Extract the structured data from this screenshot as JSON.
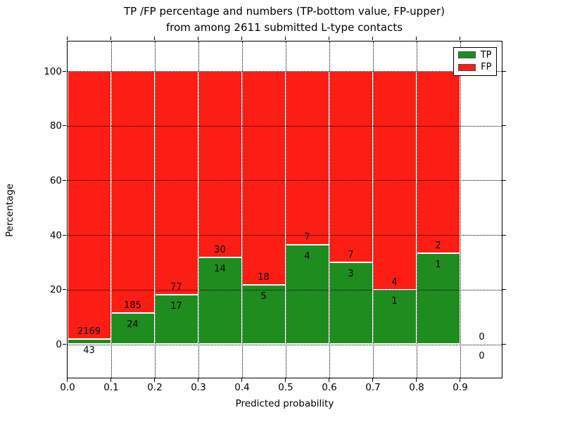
{
  "chart_data": {
    "type": "bar",
    "stacked": true,
    "normalized_to_percent": true,
    "title_line1": "TP /FP percentage and numbers (TP-bottom value, FP-upper)",
    "title_line2": "from among 2611 submitted L-type contacts",
    "total_submitted": 2611,
    "xlabel": "Predicted probability",
    "ylabel": "Percentage",
    "x_tick_labels": [
      "0.0",
      "0.1",
      "0.2",
      "0.3",
      "0.4",
      "0.5",
      "0.6",
      "0.7",
      "0.8",
      "0.9"
    ],
    "y_tick_values": [
      0,
      20,
      40,
      60,
      80,
      100
    ],
    "ylim": [
      -12,
      110
    ],
    "xlim": [
      0.0,
      1.0
    ],
    "grid": "dotted, both axes, drawn over bars",
    "legend_position": "upper right",
    "legend": [
      {
        "label": "TP",
        "color": "#1f8c1f"
      },
      {
        "label": "FP",
        "color": "#fc1d15"
      }
    ],
    "bins": [
      {
        "x0": 0.0,
        "x1": 0.1,
        "tp": 43,
        "fp": 2169,
        "tp_pct": 1.9,
        "fp_pct": 98.1
      },
      {
        "x0": 0.1,
        "x1": 0.2,
        "tp": 24,
        "fp": 185,
        "tp_pct": 11.5,
        "fp_pct": 88.5
      },
      {
        "x0": 0.2,
        "x1": 0.3,
        "tp": 17,
        "fp": 77,
        "tp_pct": 18.1,
        "fp_pct": 81.9
      },
      {
        "x0": 0.3,
        "x1": 0.4,
        "tp": 14,
        "fp": 30,
        "tp_pct": 31.8,
        "fp_pct": 68.2
      },
      {
        "x0": 0.4,
        "x1": 0.5,
        "tp": 5,
        "fp": 18,
        "tp_pct": 21.7,
        "fp_pct": 78.3
      },
      {
        "x0": 0.5,
        "x1": 0.6,
        "tp": 4,
        "fp": 7,
        "tp_pct": 36.4,
        "fp_pct": 63.6
      },
      {
        "x0": 0.6,
        "x1": 0.7,
        "tp": 3,
        "fp": 7,
        "tp_pct": 30.0,
        "fp_pct": 70.0
      },
      {
        "x0": 0.7,
        "x1": 0.8,
        "tp": 1,
        "fp": 4,
        "tp_pct": 20.0,
        "fp_pct": 80.0
      },
      {
        "x0": 0.8,
        "x1": 0.9,
        "tp": 1,
        "fp": 2,
        "tp_pct": 33.3,
        "fp_pct": 66.7
      },
      {
        "x0": 0.9,
        "x1": 1.0,
        "tp": 0,
        "fp": 0,
        "tp_pct": null,
        "fp_pct": null
      }
    ],
    "colors": {
      "tp_fill": "#1f8c1f",
      "fp_fill": "#fc1d15",
      "bar_edge": "#ffffff",
      "axes": "#000000",
      "grid": "#000000",
      "background": "#ffffff"
    }
  }
}
